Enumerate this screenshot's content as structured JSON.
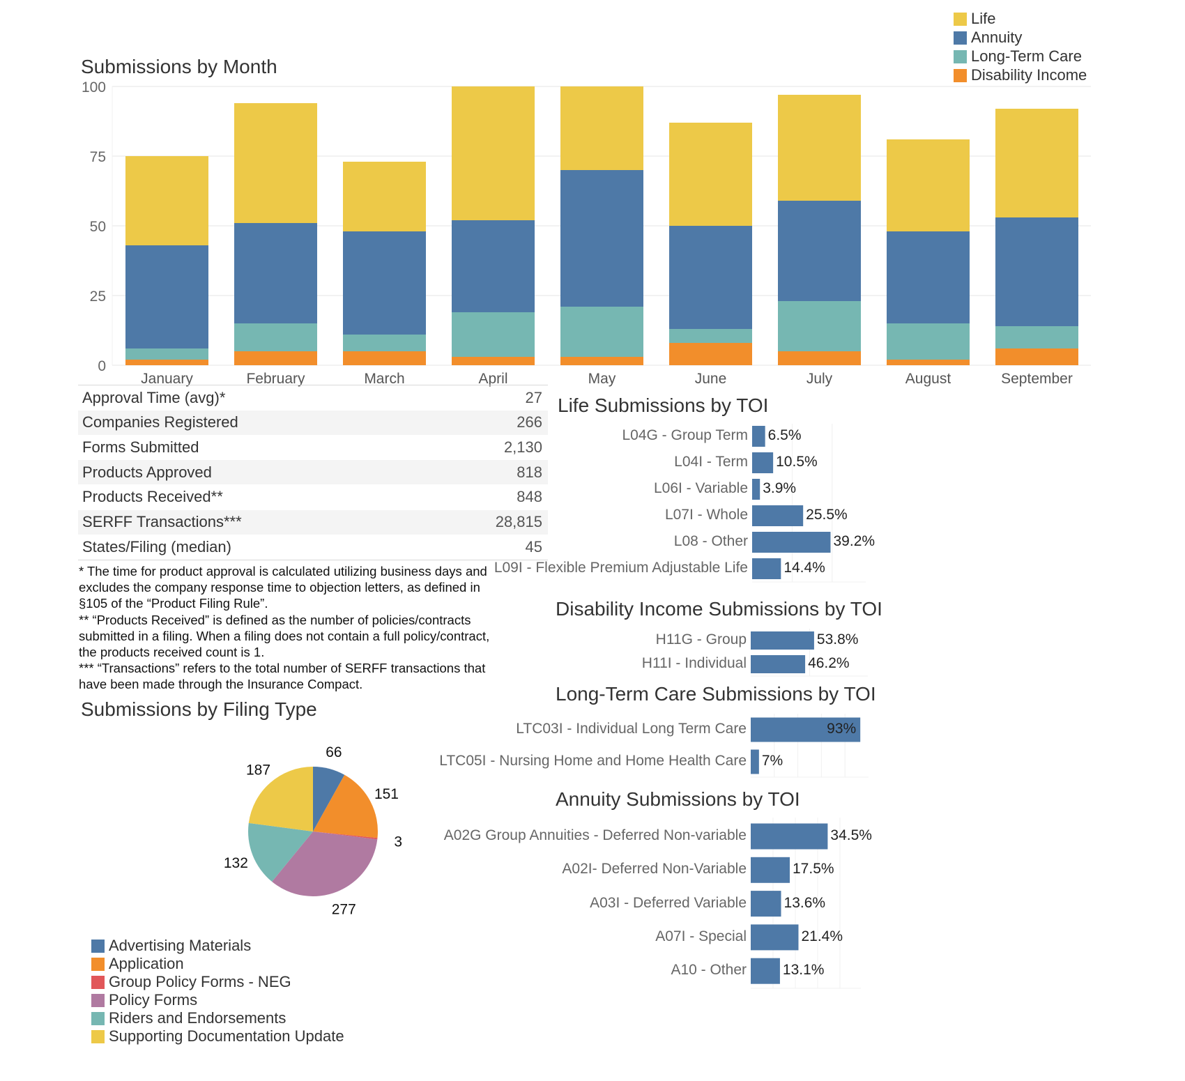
{
  "colors": {
    "life": "#EDC948",
    "annuity": "#4E79A7",
    "ltc": "#76B7B2",
    "di": "#F28E2B",
    "policy": "#B07AA1",
    "group": "#E15759",
    "toi_bar": "#4E79A7"
  },
  "legend": [
    {
      "label": "Life",
      "color": "#EDC948"
    },
    {
      "label": "Annuity",
      "color": "#4E79A7"
    },
    {
      "label": "Long-Term Care",
      "color": "#76B7B2"
    },
    {
      "label": "Disability Income",
      "color": "#F28E2B"
    }
  ],
  "kpis": [
    {
      "label": "Approval Time (avg)*",
      "value": "27"
    },
    {
      "label": "Companies Registered",
      "value": "266"
    },
    {
      "label": "Forms Submitted",
      "value": "2,130"
    },
    {
      "label": "Products Approved",
      "value": "818"
    },
    {
      "label": "Products Received**",
      "value": "848"
    },
    {
      "label": "SERFF Transactions***",
      "value": "28,815"
    },
    {
      "label": "States/Filing (median)",
      "value": "45"
    }
  ],
  "footnotes": [
    "* The time for product approval is calculated utilizing business days and",
    "excludes the company response time to objection letters, as defined in",
    "§105 of the “Product Filing Rule”.",
    "** “Products Received” is defined as the number of policies/contracts",
    "submitted in a filing. When a filing does not contain a full policy/contract,",
    "the products received count is 1.",
    "*** “Transactions” refers to the total number of SERFF transactions that",
    "have been made through the Insurance Compact."
  ],
  "chart_data": [
    {
      "type": "bar",
      "stacked": true,
      "title": "Submissions by Month",
      "categories": [
        "January",
        "February",
        "March",
        "April",
        "May",
        "June",
        "July",
        "August",
        "September"
      ],
      "yticks": [
        "100",
        "75",
        "50",
        "25",
        "0"
      ],
      "ylim": [
        0,
        100
      ],
      "grid": true,
      "legend": "top-right",
      "series": [
        {
          "name": "Disability Income",
          "color": "#F28E2B",
          "values": [
            2,
            5,
            5,
            3,
            3,
            8,
            5,
            2,
            6
          ]
        },
        {
          "name": "Long-Term Care",
          "color": "#76B7B2",
          "values": [
            4,
            10,
            6,
            16,
            18,
            5,
            18,
            13,
            8
          ]
        },
        {
          "name": "Annuity",
          "color": "#4E79A7",
          "values": [
            37,
            36,
            37,
            33,
            49,
            37,
            36,
            33,
            39
          ]
        },
        {
          "name": "Life",
          "color": "#EDC948",
          "values": [
            32,
            43,
            25,
            50,
            32,
            37,
            38,
            33,
            39
          ]
        }
      ]
    },
    {
      "type": "bar",
      "orientation": "horizontal",
      "title": "Life Submissions by TOI",
      "categories": [
        "L04G - Group Term",
        "L04I - Term",
        "L06I - Variable",
        "L07I - Whole",
        "L08 - Other",
        "L09I - Flexible Premium Adjustable Life"
      ],
      "values": [
        6.5,
        10.5,
        3.9,
        25.5,
        39.2,
        14.4
      ],
      "labels": [
        "6.5%",
        "10.5%",
        "3.9%",
        "25.5%",
        "39.2%",
        "14.4%"
      ]
    },
    {
      "type": "bar",
      "orientation": "horizontal",
      "title": "Disability Income Submissions by TOI",
      "categories": [
        "H11G - Group",
        "H11I - Individual"
      ],
      "values": [
        53.8,
        46.2
      ],
      "labels": [
        "53.8%",
        "46.2%"
      ]
    },
    {
      "type": "bar",
      "orientation": "horizontal",
      "title": "Long-Term Care Submissions by TOI",
      "categories": [
        "LTC03I - Individual Long Term Care",
        "LTC05I  - Nursing Home and Home Health Care"
      ],
      "values": [
        93,
        7
      ],
      "labels": [
        "93%",
        "7%"
      ]
    },
    {
      "type": "bar",
      "orientation": "horizontal",
      "title": "Annuity Submissions by TOI",
      "categories": [
        "A02G Group Annuities - Deferred Non-variable",
        "A02I- Deferred Non-Variable",
        "A03I - Deferred Variable",
        "A07I - Special",
        "A10 - Other"
      ],
      "values": [
        34.5,
        17.5,
        13.6,
        21.4,
        13.1
      ],
      "labels": [
        "34.5%",
        "17.5%",
        "13.6%",
        "21.4%",
        "13.1%"
      ]
    },
    {
      "type": "pie",
      "title": "Submissions by Filing Type",
      "legend": "bottom-left",
      "slices": [
        {
          "label": "Advertising Materials",
          "value": 66,
          "color": "#4E79A7"
        },
        {
          "label": "Application",
          "value": 151,
          "color": "#F28E2B"
        },
        {
          "label": "Group Policy Forms - NEG",
          "value": 3,
          "color": "#E15759"
        },
        {
          "label": "Policy Forms",
          "value": 277,
          "color": "#B07AA1"
        },
        {
          "label": "Riders and Endorsements",
          "value": 132,
          "color": "#76B7B2"
        },
        {
          "label": "Supporting Documentation Update",
          "value": 187,
          "color": "#EDC948"
        }
      ]
    }
  ]
}
